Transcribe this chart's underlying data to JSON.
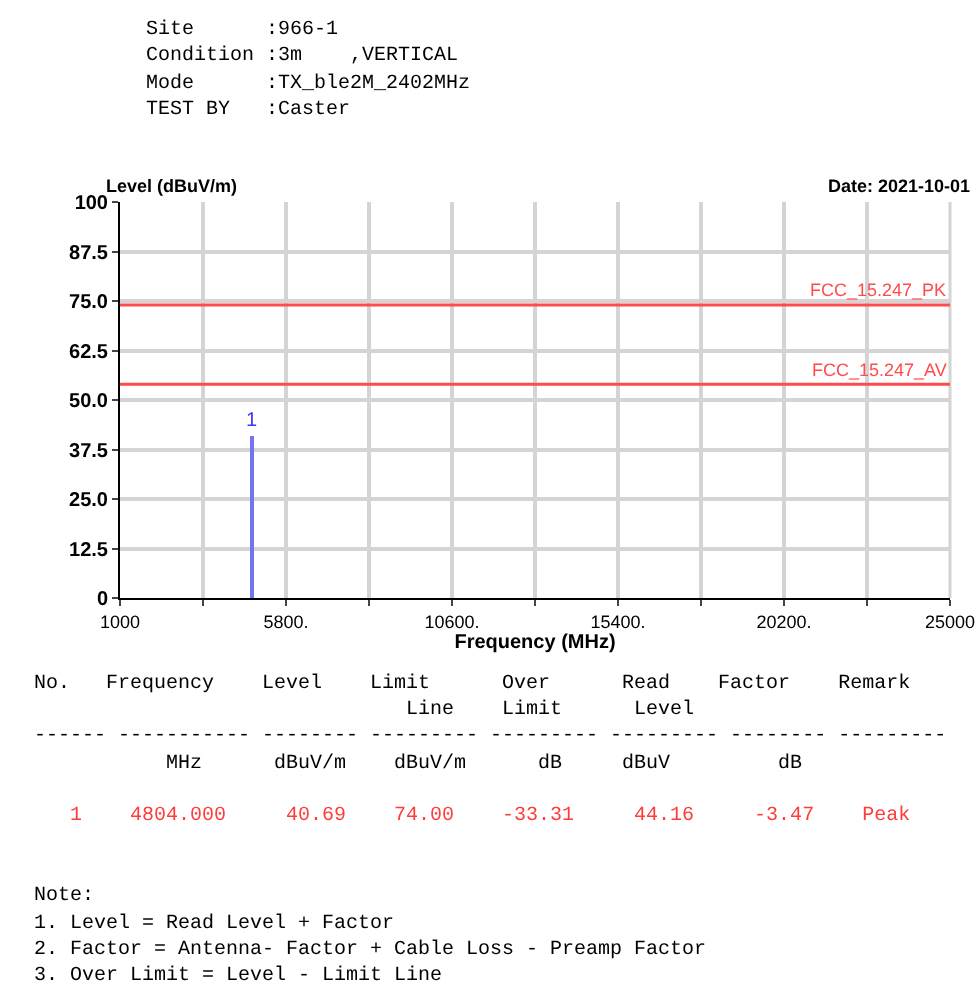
{
  "chart_data": {
    "type": "bar",
    "xlabel": "Frequency (MHz)",
    "ylabel": "Level (dBuV/m)",
    "series": [
      {
        "color": "#7474f2",
        "x": [
          4804
        ],
        "values": [
          40.69
        ]
      }
    ],
    "xlim": [
      1000,
      25000
    ],
    "xticks": [
      1000,
      {
        "value": 3400,
        "label": null
      },
      {
        "value": 5800,
        "label": "5800."
      },
      {
        "value": 8200,
        "label": null
      },
      {
        "value": 10600,
        "label": "10600."
      },
      {
        "value": 13000,
        "label": null
      },
      {
        "value": 15400,
        "label": "15400."
      },
      {
        "value": 17800,
        "label": null
      },
      {
        "value": 20200,
        "label": "20200."
      },
      {
        "value": 22600,
        "label": null
      },
      25000
    ],
    "ylim": [
      0,
      100
    ],
    "yticks": [
      0,
      12.5,
      {
        "value": 25,
        "label": "25.0"
      },
      37.5,
      {
        "value": 50,
        "label": "50.0"
      },
      62.5,
      {
        "value": 75,
        "label": "75.0"
      },
      87.5,
      100
    ],
    "grid": true,
    "ref_lines": [
      {
        "axis": "y",
        "value": 74,
        "label": "FCC_15.247_PK",
        "color": "#ff4b4b"
      },
      {
        "axis": "y",
        "value": 54,
        "label": "FCC_15.247_AV",
        "color": "#ff4b4b"
      }
    ],
    "annotations": [
      "Site      :966-1",
      "Condition :3m    ,VERTICAL",
      "Mode      :TX_ble2M_2402MHz",
      "TEST BY   :Caster",
      "Date: 2021-10-01",
      "No.   Frequency    Level    Limit      Over      Read    Factor    Remark",
      "                               Line    Limit      Level",
      "------ ----------- -------- --------- --------- --------- -------- ---------",
      "           MHz      dBuV/m    dBuV/m      dB     dBuV         dB",
      "   1    4804.000     40.69    74.00    -33.31     44.16     -3.47    Peak",
      "Note:",
      "1. Level = Read Level + Factor",
      "2. Factor = Antenna- Factor + Cable Loss - Preamp Factor",
      "3. Over Limit = Level - Limit Line",
      {
        "text": "1",
        "x": 4804,
        "y": 40.69
      }
    ]
  }
}
